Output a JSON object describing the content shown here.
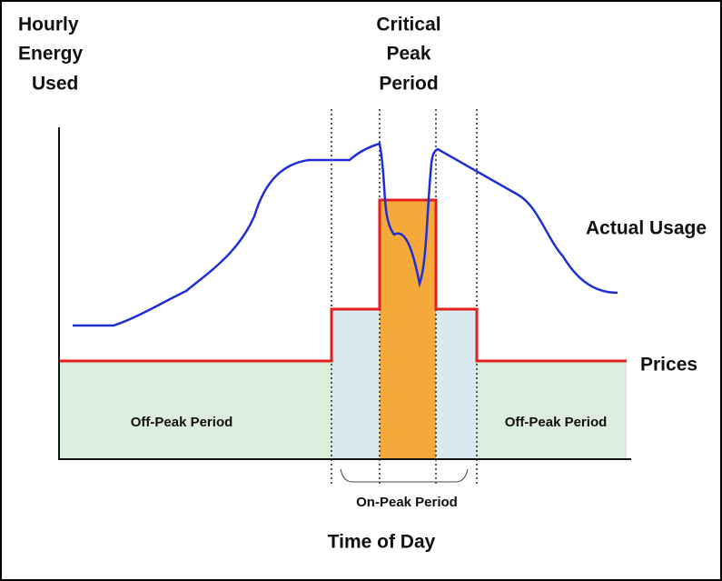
{
  "y_axis_label": [
    "Hourly",
    "Energy",
    "Used"
  ],
  "critical_label": [
    "Critical",
    "Peak",
    "Period"
  ],
  "usage_label": "Actual Usage",
  "prices_label": "Prices",
  "off_peak_left": "Off-Peak Period",
  "off_peak_right": "Off-Peak Period",
  "on_peak_label": "On-Peak Period",
  "x_axis_label": "Time of Day"
}
